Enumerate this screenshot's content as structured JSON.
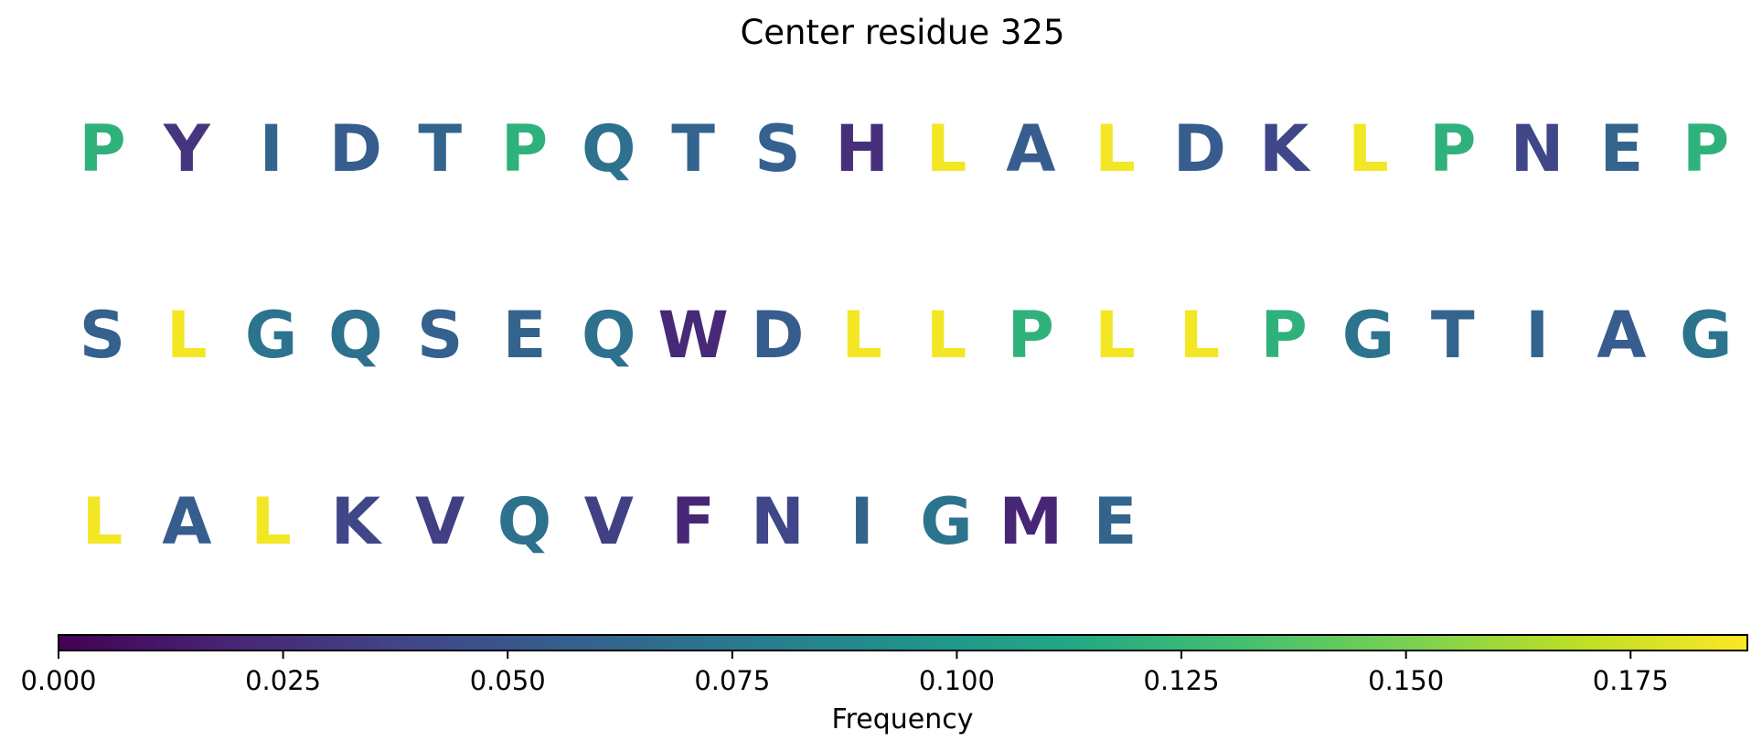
{
  "chart_data": {
    "type": "other",
    "title": "Center residue 325",
    "sequence": [
      {
        "residue": "P",
        "frequency": 0.12
      },
      {
        "residue": "Y",
        "frequency": 0.028
      },
      {
        "residue": "I",
        "frequency": 0.06
      },
      {
        "residue": "D",
        "frequency": 0.055
      },
      {
        "residue": "T",
        "frequency": 0.06
      },
      {
        "residue": "P",
        "frequency": 0.12
      },
      {
        "residue": "Q",
        "frequency": 0.07
      },
      {
        "residue": "T",
        "frequency": 0.06
      },
      {
        "residue": "S",
        "frequency": 0.058
      },
      {
        "residue": "H",
        "frequency": 0.025
      },
      {
        "residue": "L",
        "frequency": 0.185
      },
      {
        "residue": "A",
        "frequency": 0.055
      },
      {
        "residue": "L",
        "frequency": 0.185
      },
      {
        "residue": "D",
        "frequency": 0.055
      },
      {
        "residue": "K",
        "frequency": 0.04
      },
      {
        "residue": "L",
        "frequency": 0.185
      },
      {
        "residue": "P",
        "frequency": 0.12
      },
      {
        "residue": "N",
        "frequency": 0.04
      },
      {
        "residue": "E",
        "frequency": 0.06
      },
      {
        "residue": "P",
        "frequency": 0.12
      },
      {
        "residue": "S",
        "frequency": 0.058
      },
      {
        "residue": "L",
        "frequency": 0.185
      },
      {
        "residue": "G",
        "frequency": 0.072
      },
      {
        "residue": "Q",
        "frequency": 0.07
      },
      {
        "residue": "S",
        "frequency": 0.058
      },
      {
        "residue": "E",
        "frequency": 0.06
      },
      {
        "residue": "Q",
        "frequency": 0.07
      },
      {
        "residue": "W",
        "frequency": 0.022
      },
      {
        "residue": "D",
        "frequency": 0.055
      },
      {
        "residue": "L",
        "frequency": 0.185
      },
      {
        "residue": "L",
        "frequency": 0.185
      },
      {
        "residue": "P",
        "frequency": 0.12
      },
      {
        "residue": "L",
        "frequency": 0.185
      },
      {
        "residue": "L",
        "frequency": 0.185
      },
      {
        "residue": "P",
        "frequency": 0.12
      },
      {
        "residue": "G",
        "frequency": 0.072
      },
      {
        "residue": "T",
        "frequency": 0.06
      },
      {
        "residue": "I",
        "frequency": 0.06
      },
      {
        "residue": "A",
        "frequency": 0.055
      },
      {
        "residue": "G",
        "frequency": 0.072
      },
      {
        "residue": "L",
        "frequency": 0.185
      },
      {
        "residue": "A",
        "frequency": 0.055
      },
      {
        "residue": "L",
        "frequency": 0.185
      },
      {
        "residue": "K",
        "frequency": 0.04
      },
      {
        "residue": "V",
        "frequency": 0.035
      },
      {
        "residue": "Q",
        "frequency": 0.07
      },
      {
        "residue": "V",
        "frequency": 0.035
      },
      {
        "residue": "F",
        "frequency": 0.02
      },
      {
        "residue": "N",
        "frequency": 0.04
      },
      {
        "residue": "I",
        "frequency": 0.06
      },
      {
        "residue": "G",
        "frequency": 0.072
      },
      {
        "residue": "M",
        "frequency": 0.02
      },
      {
        "residue": "E",
        "frequency": 0.06
      }
    ],
    "letters_per_row": 20,
    "colorbar": {
      "label": "Frequency",
      "colormap": "viridis",
      "range": [
        0.0,
        0.188
      ],
      "ticks": [
        "0.000",
        "0.025",
        "0.050",
        "0.075",
        "0.100",
        "0.125",
        "0.150",
        "0.175"
      ],
      "orientation": "horizontal",
      "position": "bottom"
    }
  }
}
